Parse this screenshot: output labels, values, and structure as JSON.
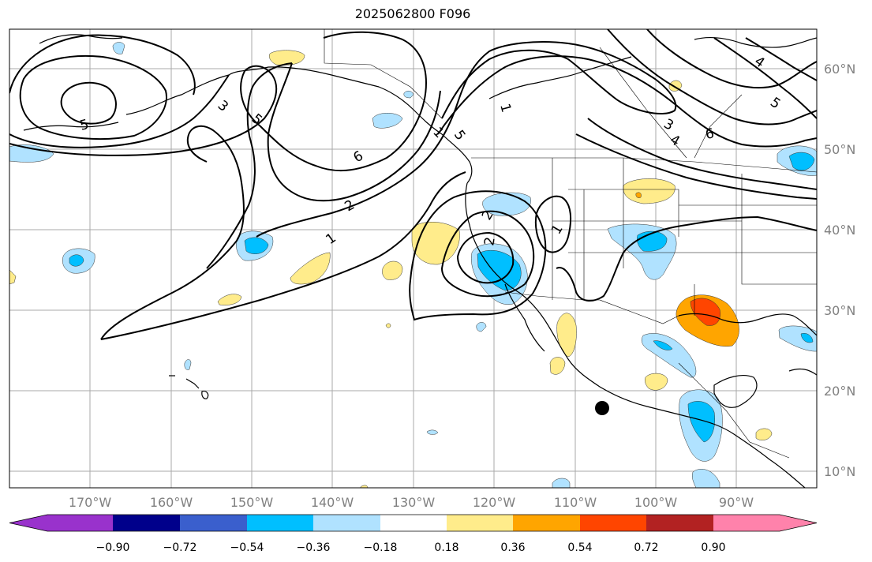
{
  "title": "2025062800 F096",
  "lat_labels": [
    "60°N",
    "50°N",
    "40°N",
    "30°N",
    "20°N",
    "10°N"
  ],
  "lon_labels": [
    "170°W",
    "160°W",
    "150°W",
    "140°W",
    "130°W",
    "120°W",
    "110°W",
    "100°W",
    "90°W"
  ],
  "colorbar": {
    "colors": [
      "#9932cc",
      "#00008b",
      "#3a5fcd",
      "#00bfff",
      "#b0e2ff",
      "#ffffff",
      "#ffec8b",
      "#ffa500",
      "#ff4500",
      "#b22222",
      "#ff82ab"
    ],
    "tick_labels": [
      "−0.90",
      "−0.72",
      "−0.54",
      "−0.36",
      "−0.18",
      "0.18",
      "0.36",
      "0.54",
      "0.72",
      "0.90"
    ]
  },
  "contour_labels": [
    "5",
    "3",
    "5",
    "6",
    "2",
    "1",
    "2",
    "1",
    "6",
    "5",
    "4",
    "3",
    "5",
    "4",
    "1",
    "2",
    "1"
  ],
  "colors": {
    "land_outline": "#000000",
    "grid": "#a9a9a9",
    "axis_text": "#808080"
  }
}
